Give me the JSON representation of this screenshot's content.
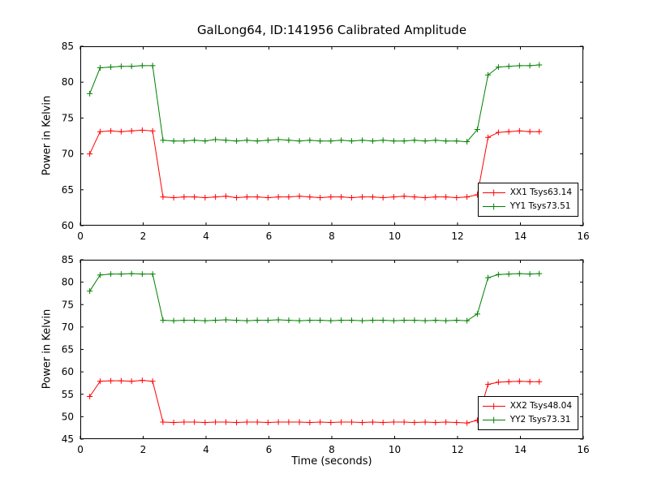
{
  "figure_title": "GalLong64, ID:141956 Calibrated Amplitude",
  "xlabel": "Time (seconds)",
  "ylabel": "Power in Kelvin",
  "colors": {
    "red": "#ff0000",
    "green": "#008000",
    "axis": "#000000",
    "background": "#ffffff"
  },
  "chart_data": [
    {
      "type": "line",
      "title": "GalLong64, ID:141956 Calibrated Amplitude",
      "xlabel": "",
      "ylabel": "Power in Kelvin",
      "xlim": [
        0,
        16
      ],
      "ylim": [
        60,
        85
      ],
      "xticks": [
        0,
        2,
        4,
        6,
        8,
        10,
        12,
        14,
        16
      ],
      "yticks": [
        60,
        65,
        70,
        75,
        80,
        85
      ],
      "grid": false,
      "legend_position": "lower right",
      "marker": "plus",
      "x": [
        0.3,
        0.63,
        0.97,
        1.3,
        1.63,
        1.97,
        2.3,
        2.63,
        2.97,
        3.3,
        3.63,
        3.97,
        4.3,
        4.63,
        4.97,
        5.3,
        5.63,
        5.97,
        6.3,
        6.63,
        6.97,
        7.3,
        7.63,
        7.97,
        8.3,
        8.63,
        8.97,
        9.3,
        9.63,
        9.97,
        10.3,
        10.63,
        10.97,
        11.3,
        11.63,
        11.97,
        12.3,
        12.63,
        12.97,
        13.3,
        13.63,
        13.97,
        14.3,
        14.6
      ],
      "series": [
        {
          "name": "XX1 Tsys63.14",
          "color": "#ff0000",
          "values": [
            70.0,
            73.1,
            73.2,
            73.1,
            73.2,
            73.3,
            73.2,
            64.0,
            63.9,
            64.0,
            64.0,
            63.9,
            64.0,
            64.1,
            63.9,
            64.0,
            64.0,
            63.9,
            64.0,
            64.0,
            64.1,
            64.0,
            63.9,
            64.0,
            64.0,
            63.9,
            64.0,
            64.0,
            63.9,
            64.0,
            64.1,
            64.0,
            63.9,
            64.0,
            64.0,
            63.9,
            64.0,
            64.3,
            72.3,
            73.0,
            73.1,
            73.2,
            73.1,
            73.1
          ]
        },
        {
          "name": "YY1 Tsys73.51",
          "color": "#008000",
          "values": [
            78.4,
            82.0,
            82.1,
            82.2,
            82.2,
            82.3,
            82.3,
            71.9,
            71.8,
            71.8,
            71.9,
            71.8,
            72.0,
            71.9,
            71.8,
            71.9,
            71.8,
            71.9,
            72.0,
            71.9,
            71.8,
            71.9,
            71.8,
            71.8,
            71.9,
            71.8,
            71.9,
            71.8,
            71.9,
            71.8,
            71.8,
            71.9,
            71.8,
            71.9,
            71.8,
            71.8,
            71.7,
            73.4,
            81.0,
            82.1,
            82.2,
            82.3,
            82.3,
            82.4
          ]
        }
      ]
    },
    {
      "type": "line",
      "title": "",
      "xlabel": "Time (seconds)",
      "ylabel": "Power in Kelvin",
      "xlim": [
        0,
        16
      ],
      "ylim": [
        45,
        85
      ],
      "xticks": [
        0,
        2,
        4,
        6,
        8,
        10,
        12,
        14,
        16
      ],
      "yticks": [
        45,
        50,
        55,
        60,
        65,
        70,
        75,
        80,
        85
      ],
      "grid": false,
      "legend_position": "lower right",
      "marker": "plus",
      "x": [
        0.3,
        0.63,
        0.97,
        1.3,
        1.63,
        1.97,
        2.3,
        2.63,
        2.97,
        3.3,
        3.63,
        3.97,
        4.3,
        4.63,
        4.97,
        5.3,
        5.63,
        5.97,
        6.3,
        6.63,
        6.97,
        7.3,
        7.63,
        7.97,
        8.3,
        8.63,
        8.97,
        9.3,
        9.63,
        9.97,
        10.3,
        10.63,
        10.97,
        11.3,
        11.63,
        11.97,
        12.3,
        12.63,
        12.97,
        13.3,
        13.63,
        13.97,
        14.3,
        14.6
      ],
      "series": [
        {
          "name": "XX2 Tsys48.04",
          "color": "#ff0000",
          "values": [
            54.5,
            57.9,
            58.0,
            58.0,
            57.9,
            58.1,
            57.9,
            48.8,
            48.7,
            48.8,
            48.8,
            48.7,
            48.8,
            48.8,
            48.7,
            48.8,
            48.8,
            48.7,
            48.8,
            48.8,
            48.8,
            48.7,
            48.8,
            48.7,
            48.8,
            48.8,
            48.7,
            48.8,
            48.7,
            48.8,
            48.8,
            48.7,
            48.8,
            48.7,
            48.8,
            48.7,
            48.6,
            49.2,
            57.2,
            57.7,
            57.8,
            57.9,
            57.8,
            57.8
          ]
        },
        {
          "name": "YY2 Tsys73.31",
          "color": "#008000",
          "values": [
            78.0,
            81.6,
            81.8,
            81.8,
            81.9,
            81.8,
            81.8,
            71.5,
            71.4,
            71.5,
            71.5,
            71.4,
            71.5,
            71.6,
            71.5,
            71.4,
            71.5,
            71.5,
            71.6,
            71.5,
            71.4,
            71.5,
            71.5,
            71.4,
            71.5,
            71.5,
            71.4,
            71.5,
            71.5,
            71.4,
            71.5,
            71.5,
            71.4,
            71.5,
            71.4,
            71.5,
            71.4,
            72.9,
            81.0,
            81.7,
            81.8,
            81.9,
            81.8,
            81.9
          ]
        }
      ]
    }
  ]
}
